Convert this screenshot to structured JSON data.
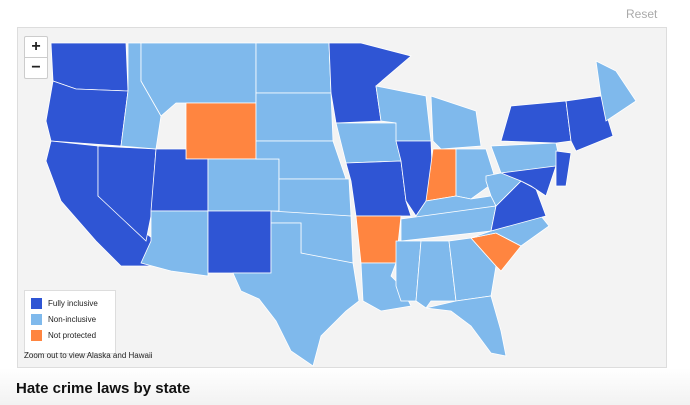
{
  "reset_label": "Reset",
  "zoom_in_label": "+",
  "zoom_out_label": "−",
  "title": "Hate crime laws by state",
  "note": "Zoom out to view Alaska and Hawaii",
  "legend": [
    {
      "key": "full",
      "label": "Fully inclusive",
      "color": "#2f55d4"
    },
    {
      "key": "non",
      "label": "Non-inclusive",
      "color": "#7fb9ec"
    },
    {
      "key": "none",
      "label": "Not protected",
      "color": "#ff8540"
    }
  ],
  "states": {
    "WA": "full",
    "OR": "full",
    "CA": "full",
    "NV": "full",
    "ID": "non",
    "MT": "non",
    "WY": "none",
    "UT": "full",
    "CO": "non",
    "AZ": "non",
    "NM": "full",
    "ND": "non",
    "SD": "non",
    "NE": "non",
    "KS": "non",
    "OK": "non",
    "TX": "non",
    "MN": "full",
    "IA": "non",
    "MO": "full",
    "AR": "none",
    "LA": "non",
    "WI": "non",
    "IL": "full",
    "MI": "non",
    "IN": "none",
    "OH": "non",
    "KY": "non",
    "TN": "non",
    "MS": "non",
    "AL": "non",
    "GA": "non",
    "FL": "non",
    "SC": "none",
    "NC": "non",
    "VA": "full",
    "WV": "non",
    "PA": "non",
    "NY": "full",
    "MD": "full",
    "NJ": "full",
    "NE_STATES": "full",
    "ME": "non"
  }
}
